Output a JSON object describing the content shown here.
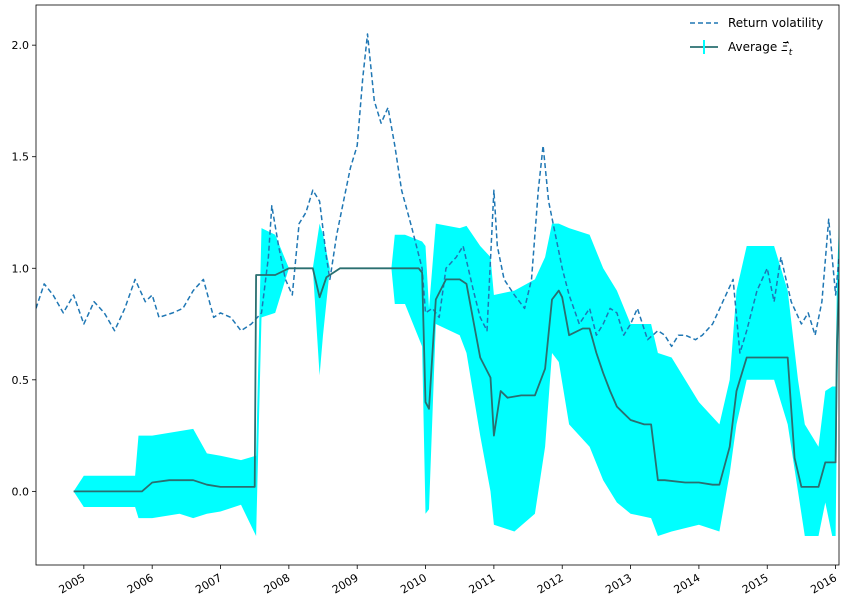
{
  "chart_data": {
    "type": "line",
    "title": "",
    "xlabel": "",
    "ylabel": "",
    "xlim": [
      2004.3,
      2016.05
    ],
    "ylim": [
      -0.33,
      2.18
    ],
    "x_ticks": [
      {
        "value": 2005.0,
        "label": "2005"
      },
      {
        "value": 2006.0,
        "label": "2006"
      },
      {
        "value": 2007.0,
        "label": "2007"
      },
      {
        "value": 2008.0,
        "label": "2008"
      },
      {
        "value": 2009.0,
        "label": "2009"
      },
      {
        "value": 2010.0,
        "label": "2010"
      },
      {
        "value": 2011.0,
        "label": "2011"
      },
      {
        "value": 2012.0,
        "label": "2012"
      },
      {
        "value": 2013.0,
        "label": "2013"
      },
      {
        "value": 2014.0,
        "label": "2014"
      },
      {
        "value": 2015.0,
        "label": "2015"
      },
      {
        "value": 2016.0,
        "label": "2016"
      }
    ],
    "y_ticks": [
      {
        "value": 0.0,
        "label": "0.0"
      },
      {
        "value": 0.5,
        "label": "0.5"
      },
      {
        "value": 1.0,
        "label": "1.0"
      },
      {
        "value": 1.5,
        "label": "1.5"
      },
      {
        "value": 2.0,
        "label": "2.0"
      }
    ],
    "grid": false,
    "legend_position": "top-right",
    "colors": {
      "volatility": "#1f77b4",
      "average": "#2a6f70",
      "band": "#00ffff"
    },
    "series": [
      {
        "name": "Return volatility",
        "style": "dashed",
        "x": [
          2004.3,
          2004.42,
          2004.55,
          2004.7,
          2004.85,
          2005.0,
          2005.15,
          2005.3,
          2005.45,
          2005.6,
          2005.75,
          2005.9,
          2006.0,
          2006.1,
          2006.3,
          2006.45,
          2006.6,
          2006.75,
          2006.9,
          2007.0,
          2007.15,
          2007.3,
          2007.45,
          2007.6,
          2007.7,
          2007.75,
          2007.85,
          2007.95,
          2008.05,
          2008.15,
          2008.25,
          2008.35,
          2008.45,
          2008.55,
          2008.6,
          2008.7,
          2008.8,
          2008.9,
          2009.0,
          2009.08,
          2009.15,
          2009.25,
          2009.35,
          2009.45,
          2009.55,
          2009.65,
          2009.8,
          2009.95,
          2010.0,
          2010.1,
          2010.2,
          2010.3,
          2010.45,
          2010.55,
          2010.7,
          2010.8,
          2010.9,
          2011.0,
          2011.05,
          2011.15,
          2011.3,
          2011.45,
          2011.55,
          2011.65,
          2011.72,
          2011.8,
          2011.9,
          2012.0,
          2012.1,
          2012.25,
          2012.4,
          2012.5,
          2012.6,
          2012.7,
          2012.8,
          2012.9,
          2013.0,
          2013.1,
          2013.25,
          2013.4,
          2013.5,
          2013.6,
          2013.7,
          2013.8,
          2013.95,
          2014.05,
          2014.2,
          2014.35,
          2014.5,
          2014.6,
          2014.7,
          2014.85,
          2015.0,
          2015.1,
          2015.2,
          2015.35,
          2015.5,
          2015.6,
          2015.7,
          2015.8,
          2015.9,
          2016.0,
          2016.05
        ],
        "y": [
          0.82,
          0.93,
          0.88,
          0.8,
          0.88,
          0.75,
          0.85,
          0.8,
          0.72,
          0.82,
          0.95,
          0.85,
          0.88,
          0.78,
          0.8,
          0.82,
          0.9,
          0.95,
          0.78,
          0.8,
          0.78,
          0.72,
          0.75,
          0.8,
          1.05,
          1.28,
          1.1,
          0.95,
          0.88,
          1.2,
          1.25,
          1.35,
          1.3,
          1.05,
          0.95,
          1.15,
          1.3,
          1.45,
          1.55,
          1.85,
          2.05,
          1.75,
          1.65,
          1.72,
          1.55,
          1.35,
          1.18,
          1.0,
          0.8,
          0.82,
          0.78,
          1.0,
          1.05,
          1.1,
          0.9,
          0.78,
          0.72,
          1.35,
          1.1,
          0.95,
          0.88,
          0.82,
          0.95,
          1.35,
          1.55,
          1.3,
          1.15,
          1.0,
          0.88,
          0.75,
          0.82,
          0.7,
          0.75,
          0.82,
          0.8,
          0.7,
          0.75,
          0.82,
          0.68,
          0.72,
          0.7,
          0.65,
          0.7,
          0.7,
          0.68,
          0.7,
          0.75,
          0.85,
          0.95,
          0.62,
          0.72,
          0.9,
          1.0,
          0.85,
          1.05,
          0.85,
          0.75,
          0.8,
          0.7,
          0.85,
          1.22,
          0.88,
          1.05
        ]
      },
      {
        "name": "Average $\\hat{\\Xi}_t$",
        "style": "solid",
        "x": [
          2004.85,
          2005.0,
          2005.15,
          2005.6,
          2005.75,
          2005.85,
          2006.0,
          2006.25,
          2006.5,
          2006.6,
          2006.8,
          2007.0,
          2007.2,
          2007.4,
          2007.5,
          2007.52,
          2007.6,
          2007.8,
          2008.0,
          2008.2,
          2008.35,
          2008.45,
          2008.55,
          2008.75,
          2009.0,
          2009.5,
          2009.7,
          2009.9,
          2009.95,
          2010.0,
          2010.05,
          2010.15,
          2010.3,
          2010.5,
          2010.6,
          2010.8,
          2010.95,
          2011.0,
          2011.1,
          2011.2,
          2011.4,
          2011.6,
          2011.75,
          2011.85,
          2011.95,
          2012.0,
          2012.1,
          2012.3,
          2012.4,
          2012.5,
          2012.6,
          2012.7,
          2012.8,
          2012.9,
          2013.0,
          2013.2,
          2013.3,
          2013.4,
          2013.5,
          2013.8,
          2014.0,
          2014.2,
          2014.3,
          2014.45,
          2014.55,
          2014.7,
          2014.9,
          2015.1,
          2015.3,
          2015.4,
          2015.5,
          2015.6,
          2015.75,
          2015.85,
          2015.95,
          2016.0,
          2016.02,
          2016.05
        ],
        "y": [
          0.0,
          0.0,
          0.0,
          0.0,
          0.0,
          0.0,
          0.04,
          0.05,
          0.05,
          0.05,
          0.03,
          0.02,
          0.02,
          0.02,
          0.02,
          0.97,
          0.97,
          0.97,
          1.0,
          1.0,
          1.0,
          0.87,
          0.96,
          1.0,
          1.0,
          1.0,
          1.0,
          1.0,
          0.98,
          0.4,
          0.37,
          0.86,
          0.95,
          0.95,
          0.93,
          0.6,
          0.51,
          0.25,
          0.45,
          0.42,
          0.43,
          0.43,
          0.55,
          0.86,
          0.9,
          0.87,
          0.7,
          0.73,
          0.73,
          0.62,
          0.53,
          0.45,
          0.38,
          0.35,
          0.32,
          0.3,
          0.3,
          0.05,
          0.05,
          0.04,
          0.04,
          0.03,
          0.03,
          0.2,
          0.45,
          0.6,
          0.6,
          0.6,
          0.6,
          0.15,
          0.02,
          0.02,
          0.02,
          0.13,
          0.13,
          0.13,
          0.65,
          0.95
        ]
      }
    ],
    "band": {
      "name": "Average $\\hat{\\Xi}_t$",
      "x": [
        2004.85,
        2005.0,
        2005.3,
        2005.75,
        2005.8,
        2006.0,
        2006.4,
        2006.6,
        2006.8,
        2007.0,
        2007.3,
        2007.52,
        2007.6,
        2007.8,
        2008.0,
        2008.2,
        2008.35,
        2008.45,
        2008.5,
        2008.6,
        2008.75,
        2009.5,
        2009.55,
        2009.7,
        2009.95,
        2010.0,
        2010.05,
        2010.15,
        2010.5,
        2010.6,
        2010.8,
        2010.95,
        2011.0,
        2011.3,
        2011.6,
        2011.75,
        2011.85,
        2011.95,
        2012.1,
        2012.4,
        2012.6,
        2012.8,
        2013.0,
        2013.3,
        2013.4,
        2013.6,
        2014.0,
        2014.3,
        2014.45,
        2014.55,
        2014.7,
        2015.1,
        2015.3,
        2015.45,
        2015.55,
        2015.75,
        2015.85,
        2015.95,
        2016.0,
        2016.02,
        2016.05
      ],
      "lower": [
        0.0,
        -0.07,
        -0.07,
        -0.07,
        -0.12,
        -0.12,
        -0.1,
        -0.12,
        -0.1,
        -0.09,
        -0.06,
        -0.2,
        0.78,
        0.8,
        1.0,
        1.0,
        1.0,
        0.52,
        0.7,
        1.0,
        1.0,
        1.0,
        0.84,
        0.84,
        0.65,
        -0.1,
        -0.08,
        0.75,
        0.7,
        0.62,
        0.25,
        0.0,
        -0.15,
        -0.18,
        -0.1,
        0.2,
        0.62,
        0.58,
        0.3,
        0.2,
        0.05,
        -0.05,
        -0.1,
        -0.12,
        -0.2,
        -0.18,
        -0.15,
        -0.18,
        0.08,
        0.3,
        0.5,
        0.5,
        0.3,
        0.0,
        -0.2,
        -0.2,
        -0.05,
        -0.2,
        -0.2,
        0.3,
        0.9
      ],
      "upper": [
        0.0,
        0.07,
        0.07,
        0.07,
        0.25,
        0.25,
        0.27,
        0.28,
        0.17,
        0.16,
        0.14,
        0.16,
        1.18,
        1.15,
        1.0,
        1.0,
        1.0,
        1.2,
        1.15,
        1.0,
        1.0,
        1.0,
        1.15,
        1.15,
        1.12,
        1.1,
        0.82,
        1.2,
        1.18,
        1.19,
        1.1,
        1.05,
        0.88,
        0.9,
        0.95,
        1.05,
        1.2,
        1.2,
        1.18,
        1.15,
        1.0,
        0.9,
        0.75,
        0.75,
        0.62,
        0.6,
        0.4,
        0.3,
        0.5,
        0.9,
        1.1,
        1.1,
        0.9,
        0.5,
        0.3,
        0.2,
        0.45,
        0.47,
        0.47,
        0.95,
        1.2
      ]
    }
  }
}
